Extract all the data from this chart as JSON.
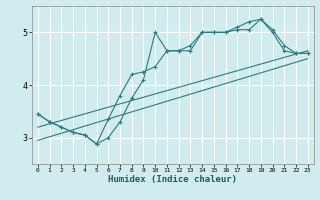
{
  "xlabel": "Humidex (Indice chaleur)",
  "ylabel": "",
  "xlim": [
    -0.5,
    23.5
  ],
  "ylim": [
    2.5,
    5.5
  ],
  "yticks": [
    3,
    4,
    5
  ],
  "xticks": [
    0,
    1,
    2,
    3,
    4,
    5,
    6,
    7,
    8,
    9,
    10,
    11,
    12,
    13,
    14,
    15,
    16,
    17,
    18,
    19,
    20,
    21,
    22,
    23
  ],
  "bg_color": "#d0ecee",
  "grid_color": "#ffffff",
  "line_color": "#2a7d7d",
  "line1_x": [
    0,
    1,
    2,
    3,
    4,
    5,
    6,
    7,
    8,
    9,
    10,
    11,
    12,
    13,
    14,
    15,
    16,
    17,
    18,
    19,
    20,
    21,
    22,
    23
  ],
  "line1_y": [
    3.45,
    3.3,
    3.2,
    3.1,
    3.05,
    2.88,
    3.35,
    3.8,
    4.2,
    4.25,
    4.35,
    4.65,
    4.65,
    4.75,
    5.0,
    5.0,
    5.0,
    5.1,
    5.2,
    5.25,
    5.05,
    4.75,
    4.6,
    4.6
  ],
  "line2_x": [
    0,
    1,
    2,
    3,
    4,
    5,
    6,
    7,
    8,
    9,
    10,
    11,
    12,
    13,
    14,
    15,
    16,
    17,
    18,
    19,
    20,
    21,
    22,
    23
  ],
  "line2_y": [
    3.45,
    3.3,
    3.2,
    3.1,
    3.05,
    2.88,
    3.0,
    3.3,
    3.75,
    4.1,
    5.0,
    4.65,
    4.65,
    4.65,
    5.0,
    5.0,
    5.0,
    5.05,
    5.05,
    5.25,
    5.0,
    4.65,
    4.6,
    4.6
  ],
  "line3_x": [
    0,
    23
  ],
  "line3_y": [
    3.2,
    4.65
  ],
  "line4_x": [
    0,
    23
  ],
  "line4_y": [
    2.95,
    4.5
  ]
}
